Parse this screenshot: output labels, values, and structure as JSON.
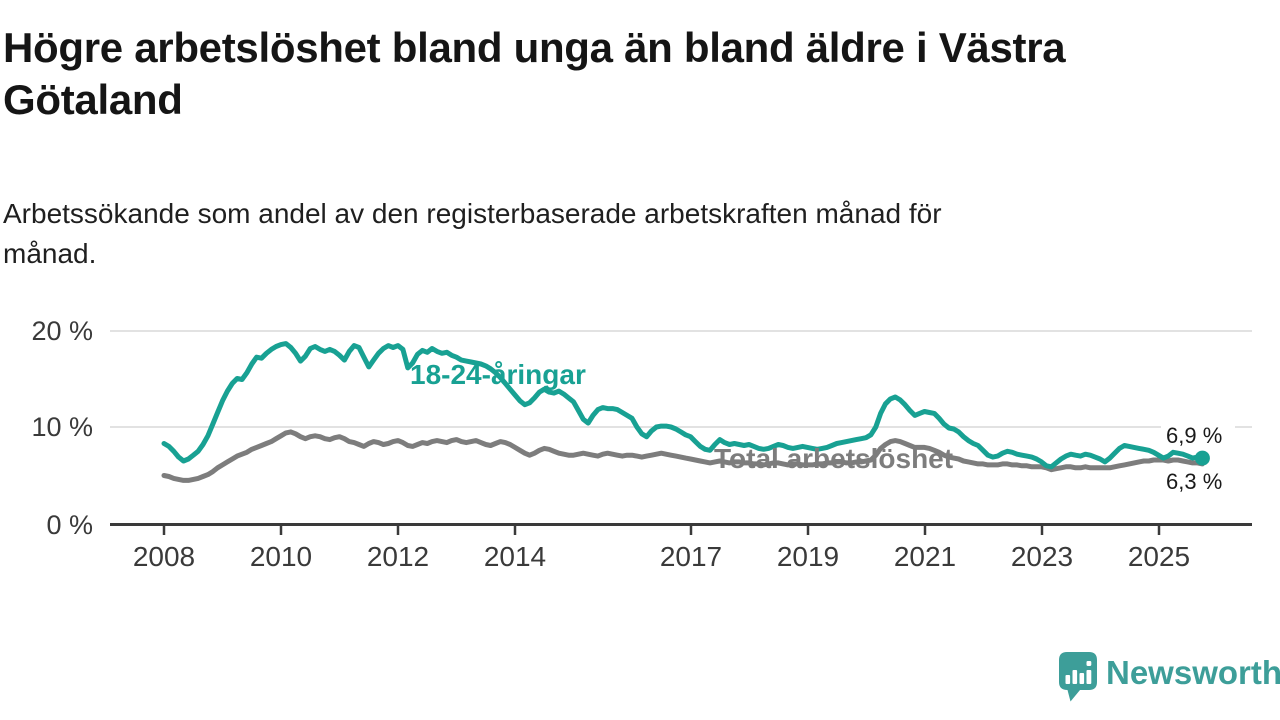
{
  "header": {
    "title_lines": [
      "Högre arbetslöshet bland unga än bland äldre i Västra",
      "Götaland"
    ],
    "subtitle_lines": [
      "Arbetssökande som andel av den registerbaserade arbetskraften månad för",
      "månad."
    ]
  },
  "chart_data": {
    "type": "line",
    "unit": "%",
    "frequency": "monthly",
    "x_start": "2008-01",
    "x_end": "2025-10",
    "x_tick_labels": [
      "2008",
      "2010",
      "2012",
      "2014",
      "2017",
      "2019",
      "2021",
      "2023",
      "2025"
    ],
    "y_tick_labels": [
      "20 %",
      "10 %",
      "0 %"
    ],
    "y_tick_values": [
      20,
      10,
      0
    ],
    "ylim": [
      0,
      21.5
    ],
    "grid": "horizontal",
    "legend_position": "inline-labels",
    "series": [
      {
        "name": "Total arbetslöshet",
        "color": "#7d7d7d",
        "end_label": "6,3 %",
        "end_value": 6.3,
        "values": [
          5.1,
          5.0,
          4.8,
          4.7,
          4.6,
          4.6,
          4.7,
          4.8,
          5.0,
          5.2,
          5.5,
          5.9,
          6.2,
          6.5,
          6.8,
          7.1,
          7.3,
          7.5,
          7.8,
          8.0,
          8.2,
          8.4,
          8.6,
          8.9,
          9.2,
          9.5,
          9.6,
          9.4,
          9.1,
          8.9,
          9.1,
          9.2,
          9.1,
          8.9,
          8.8,
          9.0,
          9.1,
          8.9,
          8.6,
          8.5,
          8.3,
          8.1,
          8.4,
          8.6,
          8.5,
          8.3,
          8.4,
          8.6,
          8.7,
          8.5,
          8.2,
          8.1,
          8.3,
          8.5,
          8.4,
          8.6,
          8.7,
          8.6,
          8.5,
          8.7,
          8.8,
          8.6,
          8.5,
          8.6,
          8.7,
          8.5,
          8.3,
          8.2,
          8.4,
          8.6,
          8.5,
          8.3,
          8.0,
          7.7,
          7.4,
          7.2,
          7.4,
          7.7,
          7.9,
          7.8,
          7.6,
          7.4,
          7.3,
          7.2,
          7.2,
          7.3,
          7.4,
          7.3,
          7.2,
          7.1,
          7.3,
          7.4,
          7.3,
          7.2,
          7.1,
          7.2,
          7.2,
          7.1,
          7.0,
          7.1,
          7.2,
          7.3,
          7.4,
          7.3,
          7.2,
          7.1,
          7.0,
          6.9,
          6.8,
          6.7,
          6.6,
          6.5,
          6.4,
          6.5,
          6.6,
          6.5,
          6.4,
          6.5,
          6.5,
          6.4,
          6.4,
          6.3,
          6.3,
          6.2,
          6.3,
          6.4,
          6.4,
          6.3,
          6.2,
          6.3,
          6.3,
          6.2,
          6.2,
          6.2,
          6.3,
          6.3,
          6.4,
          6.4,
          6.5,
          6.5,
          6.4,
          6.4,
          6.5,
          6.5,
          6.6,
          6.7,
          7.2,
          7.9,
          8.3,
          8.6,
          8.7,
          8.6,
          8.4,
          8.2,
          8.0,
          8.0,
          8.0,
          7.9,
          7.7,
          7.5,
          7.2,
          7.0,
          6.9,
          6.8,
          6.6,
          6.5,
          6.4,
          6.3,
          6.3,
          6.2,
          6.2,
          6.2,
          6.3,
          6.3,
          6.2,
          6.2,
          6.1,
          6.1,
          6.0,
          6.0,
          6.0,
          5.9,
          5.7,
          5.8,
          5.9,
          6.0,
          6.0,
          5.9,
          5.9,
          6.0,
          5.9,
          5.9,
          5.9,
          5.9,
          5.9,
          6.0,
          6.1,
          6.2,
          6.3,
          6.4,
          6.5,
          6.6,
          6.6,
          6.7,
          6.7,
          6.7,
          6.6,
          6.7,
          6.7,
          6.6,
          6.5,
          6.4,
          6.4,
          6.3
        ]
      },
      {
        "name": "18-24-åringar",
        "color": "#18a193",
        "end_label": "6,9 %",
        "end_value": 6.9,
        "values": [
          8.4,
          8.1,
          7.6,
          7.0,
          6.6,
          6.8,
          7.2,
          7.6,
          8.3,
          9.2,
          10.4,
          11.6,
          12.8,
          13.8,
          14.6,
          15.1,
          15.0,
          15.7,
          16.6,
          17.3,
          17.2,
          17.7,
          18.1,
          18.4,
          18.6,
          18.7,
          18.3,
          17.7,
          16.9,
          17.4,
          18.2,
          18.4,
          18.1,
          17.9,
          18.1,
          17.9,
          17.5,
          17.0,
          17.9,
          18.5,
          18.3,
          17.3,
          16.3,
          17.0,
          17.7,
          18.2,
          18.5,
          18.3,
          18.5,
          18.1,
          16.2,
          16.7,
          17.6,
          18.0,
          17.8,
          18.2,
          17.9,
          17.7,
          17.8,
          17.5,
          17.3,
          17.0,
          16.9,
          16.8,
          16.7,
          16.6,
          16.4,
          16.1,
          15.7,
          15.2,
          14.6,
          14.0,
          13.4,
          12.8,
          12.4,
          12.6,
          13.1,
          13.7,
          14.0,
          13.7,
          13.6,
          13.8,
          13.5,
          13.1,
          12.7,
          11.8,
          10.9,
          10.5,
          11.3,
          11.9,
          12.1,
          12.0,
          12.0,
          11.9,
          11.6,
          11.3,
          11.0,
          10.1,
          9.4,
          9.1,
          9.7,
          10.1,
          10.2,
          10.2,
          10.1,
          9.9,
          9.6,
          9.3,
          9.1,
          8.6,
          8.1,
          7.8,
          7.7,
          8.3,
          8.8,
          8.5,
          8.3,
          8.4,
          8.3,
          8.2,
          8.3,
          8.1,
          7.9,
          7.8,
          7.9,
          8.1,
          8.3,
          8.2,
          8.0,
          7.9,
          8.0,
          8.1,
          8.0,
          7.9,
          7.8,
          7.9,
          8.0,
          8.2,
          8.4,
          8.5,
          8.6,
          8.7,
          8.8,
          8.9,
          9.0,
          9.3,
          10.1,
          11.5,
          12.5,
          13.0,
          13.2,
          12.9,
          12.4,
          11.8,
          11.3,
          11.5,
          11.7,
          11.6,
          11.5,
          11.0,
          10.4,
          10.0,
          9.9,
          9.6,
          9.1,
          8.7,
          8.4,
          8.2,
          7.7,
          7.2,
          7.0,
          7.1,
          7.4,
          7.6,
          7.5,
          7.3,
          7.2,
          7.1,
          7.0,
          6.8,
          6.5,
          6.1,
          6.0,
          6.4,
          6.8,
          7.1,
          7.3,
          7.2,
          7.1,
          7.3,
          7.2,
          7.0,
          6.8,
          6.5,
          6.9,
          7.4,
          7.9,
          8.2,
          8.1,
          8.0,
          7.9,
          7.8,
          7.7,
          7.5,
          7.2,
          6.9,
          7.1,
          7.5,
          7.4,
          7.3,
          7.1,
          6.9,
          7.0,
          6.9
        ]
      }
    ]
  },
  "branding": {
    "name": "Newsworthy",
    "color": "#3d9e99"
  },
  "colors": {
    "accent_teal": "#18a193",
    "line_gray": "#7d7d7d",
    "grid": "#d9d9d9",
    "axis": "#3a3a3a",
    "text": "#1a1a1a",
    "background": "#ffffff"
  }
}
